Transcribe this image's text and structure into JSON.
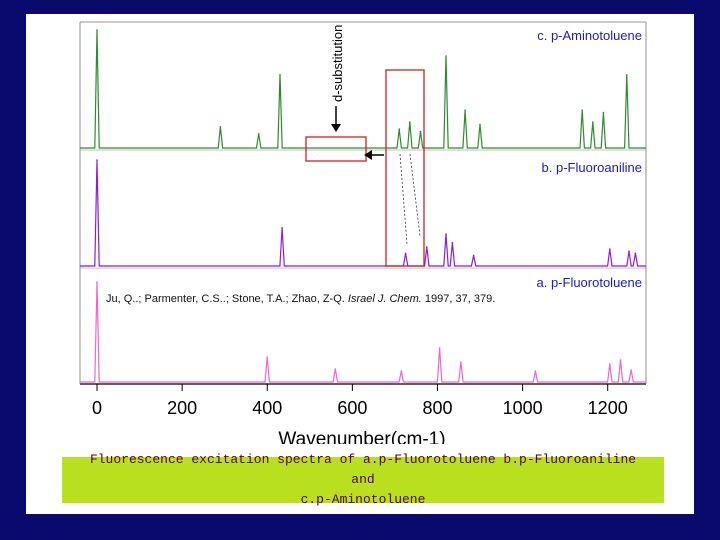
{
  "chart_data": {
    "type": "line",
    "xlabel": "Wavenumber(cm-1)",
    "xlim": [
      -40,
      1290
    ],
    "x_ticks": [
      0,
      200,
      400,
      600,
      800,
      1000,
      1200
    ],
    "grid": false,
    "series": [
      {
        "name": "c. p-Aminotoluene",
        "color": "#2e8b2e",
        "peaks": [
          {
            "x": 0,
            "h": 1.0
          },
          {
            "x": 290,
            "h": 0.18
          },
          {
            "x": 380,
            "h": 0.12
          },
          {
            "x": 430,
            "h": 0.62
          },
          {
            "x": 710,
            "h": 0.16
          },
          {
            "x": 735,
            "h": 0.22
          },
          {
            "x": 760,
            "h": 0.14
          },
          {
            "x": 820,
            "h": 0.78
          },
          {
            "x": 865,
            "h": 0.32
          },
          {
            "x": 900,
            "h": 0.2
          },
          {
            "x": 1140,
            "h": 0.32
          },
          {
            "x": 1165,
            "h": 0.22
          },
          {
            "x": 1190,
            "h": 0.3
          },
          {
            "x": 1245,
            "h": 0.62
          }
        ],
        "annotations": [
          "d-substitution"
        ]
      },
      {
        "name": "b. p-Fluoroaniline",
        "color": "#8b1fd0",
        "peaks": [
          {
            "x": 0,
            "h": 1.0
          },
          {
            "x": 435,
            "h": 0.36
          },
          {
            "x": 725,
            "h": 0.12
          },
          {
            "x": 775,
            "h": 0.18
          },
          {
            "x": 820,
            "h": 0.3
          },
          {
            "x": 835,
            "h": 0.22
          },
          {
            "x": 885,
            "h": 0.1
          },
          {
            "x": 1205,
            "h": 0.16
          },
          {
            "x": 1250,
            "h": 0.14
          },
          {
            "x": 1265,
            "h": 0.12
          }
        ]
      },
      {
        "name": "a. p-Fluorotoluene",
        "color": "#ee66cc",
        "peaks": [
          {
            "x": 0,
            "h": 1.0
          },
          {
            "x": 400,
            "h": 0.25
          },
          {
            "x": 560,
            "h": 0.13
          },
          {
            "x": 715,
            "h": 0.11
          },
          {
            "x": 805,
            "h": 0.34
          },
          {
            "x": 855,
            "h": 0.2
          },
          {
            "x": 1030,
            "h": 0.11
          },
          {
            "x": 1205,
            "h": 0.18
          },
          {
            "x": 1230,
            "h": 0.22
          },
          {
            "x": 1255,
            "h": 0.12
          }
        ]
      }
    ],
    "citation": {
      "prefix": "Ju, Q..; Parmenter, C.S..; Stone, T.A.; Zhao, Z-Q. ",
      "journal": "Israel J. Chem.",
      "rest": " 1997, 37, 379."
    }
  },
  "caption": {
    "line1": "Fluorescence excitation spectra of a.p-Fluorotoluene b.p-Fluoroaniline and",
    "line2": "c.p-Aminotoluene"
  },
  "colors": {
    "background": "#0a0a6e",
    "caption_bg": "#b8e01e",
    "caption_text": "#5a0010",
    "highlight": "#cc2222",
    "series_label": "#1a1acc"
  }
}
